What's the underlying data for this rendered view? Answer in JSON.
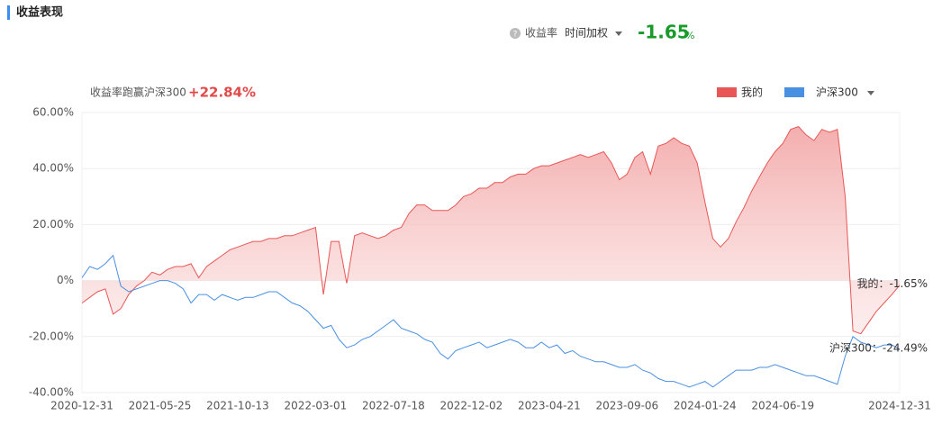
{
  "header": {
    "title": "收益表现",
    "metric": "收益率",
    "method": "时间加权",
    "return_value": "-1.65",
    "return_unit": "%"
  },
  "chart_data": {
    "type": "line",
    "subtitle": "收益率跑赢沪深300",
    "excess": "+22.84%",
    "categories": [
      "2020-12-31",
      null,
      null,
      null,
      null,
      null,
      null,
      null,
      null,
      null,
      "2021-05-25",
      null,
      null,
      null,
      null,
      null,
      null,
      null,
      null,
      null,
      "2021-10-13",
      null,
      null,
      null,
      null,
      null,
      null,
      null,
      null,
      null,
      "2022-03-01",
      null,
      null,
      null,
      null,
      null,
      null,
      null,
      null,
      null,
      "2022-07-18",
      null,
      null,
      null,
      null,
      null,
      null,
      null,
      null,
      null,
      "2022-12-02",
      null,
      null,
      null,
      null,
      null,
      null,
      null,
      null,
      null,
      "2023-04-21",
      null,
      null,
      null,
      null,
      null,
      null,
      null,
      null,
      null,
      "2023-09-06",
      null,
      null,
      null,
      null,
      null,
      null,
      null,
      null,
      null,
      "2024-01-24",
      null,
      null,
      null,
      null,
      null,
      null,
      null,
      null,
      null,
      "2024-06-19",
      null,
      null,
      null,
      null,
      null,
      null,
      null,
      null,
      null,
      null,
      null,
      null,
      null,
      null,
      "2024-12-31"
    ],
    "series": [
      {
        "name": "我的",
        "color": "#e95656",
        "end_label": "我的：-1.65%",
        "values": [
          -8,
          -6,
          -4,
          -3,
          -12,
          -10,
          -5,
          -2,
          0,
          3,
          2,
          4,
          5,
          5,
          6,
          1,
          5,
          7,
          9,
          11,
          12,
          13,
          14,
          14,
          15,
          15,
          16,
          16,
          17,
          18,
          19,
          -5,
          14,
          14,
          -1,
          16,
          17,
          16,
          15,
          16,
          18,
          19,
          24,
          27,
          27,
          25,
          25,
          25,
          27,
          30,
          31,
          33,
          33,
          35,
          35,
          37,
          38,
          38,
          40,
          41,
          41,
          42,
          43,
          44,
          45,
          44,
          45,
          46,
          42,
          36,
          38,
          44,
          46,
          38,
          48,
          49,
          51,
          49,
          48,
          42,
          28,
          15,
          12,
          15,
          21,
          26,
          32,
          37,
          42,
          46,
          49,
          54,
          55,
          52,
          50,
          54,
          53,
          54,
          30,
          -18,
          -19,
          -15,
          -11,
          -8,
          -5,
          -1.65
        ]
      },
      {
        "name": "沪深300",
        "color": "#4a90e2",
        "end_label": "沪深300：-24.49%",
        "values": [
          1,
          5,
          4,
          6,
          9,
          -2,
          -4,
          -3,
          -2,
          -1,
          0,
          0,
          -1,
          -3,
          -8,
          -5,
          -5,
          -7,
          -5,
          -6,
          -7,
          -6,
          -6,
          -5,
          -4,
          -4,
          -6,
          -8,
          -9,
          -11,
          -14,
          -17,
          -16,
          -21,
          -24,
          -23,
          -21,
          -20,
          -18,
          -16,
          -14,
          -17,
          -18,
          -19,
          -21,
          -22,
          -26,
          -28,
          -25,
          -24,
          -23,
          -22,
          -24,
          -23,
          -22,
          -21,
          -22,
          -24,
          -24,
          -22,
          -24,
          -23,
          -26,
          -25,
          -27,
          -28,
          -29,
          -29,
          -30,
          -31,
          -31,
          -30,
          -32,
          -33,
          -35,
          -36,
          -36,
          -37,
          -38,
          -37,
          -36,
          -38,
          -36,
          -34,
          -32,
          -32,
          -32,
          -31,
          -31,
          -30,
          -31,
          -32,
          -33,
          -34,
          -34,
          -35,
          -36,
          -37,
          -27,
          -20,
          -22,
          -23,
          -24,
          -23,
          -23,
          -24.49
        ]
      }
    ],
    "ylim": [
      -40,
      60
    ],
    "yticks": [
      {
        "value": -40,
        "label": "-40.00%"
      },
      {
        "value": -20,
        "label": "-20.00%"
      },
      {
        "value": 0,
        "label": "0%"
      },
      {
        "value": 20,
        "label": "20.00%"
      },
      {
        "value": 40,
        "label": "40.00%"
      },
      {
        "value": 60,
        "label": "60.00%"
      }
    ],
    "grid": true
  }
}
